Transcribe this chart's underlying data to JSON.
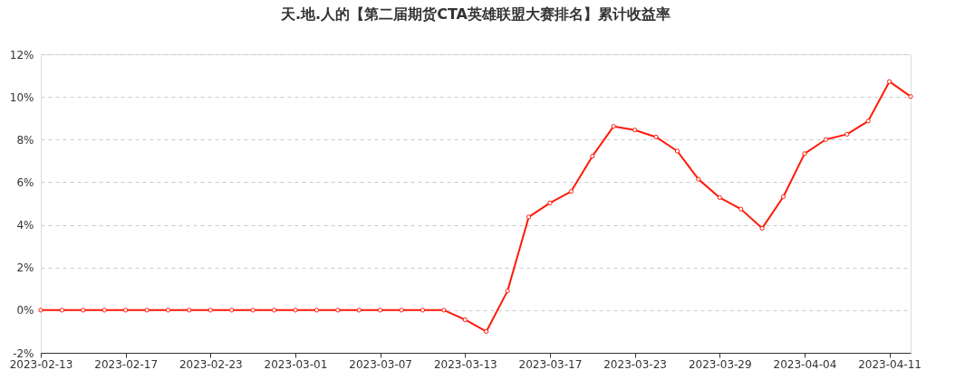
{
  "chart_data": {
    "type": "line",
    "title": "天.地.人的【第二届期货CTA英雄联盟大赛排名】累计收益率",
    "categories": [
      "2023-02-13",
      null,
      null,
      null,
      "2023-02-17",
      null,
      null,
      null,
      "2023-02-23",
      null,
      null,
      null,
      "2023-03-01",
      null,
      null,
      null,
      "2023-03-07",
      null,
      null,
      null,
      "2023-03-13",
      null,
      null,
      null,
      "2023-03-17",
      null,
      null,
      null,
      "2023-03-23",
      null,
      null,
      null,
      "2023-03-29",
      null,
      null,
      null,
      "2023-04-04",
      null,
      null,
      null,
      "2023-04-11",
      null
    ],
    "series": [
      {
        "color": "#ff1a0a",
        "values": [
          0,
          0,
          0,
          0,
          0,
          0,
          0,
          0,
          0,
          0,
          0,
          0,
          0,
          0,
          0,
          0,
          0,
          0,
          0,
          0,
          -0.45,
          -1.0,
          0.9,
          4.37,
          5.03,
          5.57,
          7.22,
          8.62,
          8.45,
          8.12,
          7.46,
          6.14,
          5.28,
          4.74,
          3.84,
          5.32,
          7.34,
          8.0,
          8.25,
          8.87,
          10.72,
          10.02
        ]
      }
    ],
    "ylim": [
      -2,
      12
    ],
    "yticks": [
      {
        "value": -2,
        "label": "-2%"
      },
      {
        "value": 0,
        "label": "0%"
      },
      {
        "value": 2,
        "label": "2%"
      },
      {
        "value": 4,
        "label": "4%"
      },
      {
        "value": 6,
        "label": "6%"
      },
      {
        "value": 8,
        "label": "8%"
      },
      {
        "value": 10,
        "label": "10%"
      },
      {
        "value": 12,
        "label": "12%"
      }
    ],
    "grid": "y",
    "marker": "circle",
    "line_style": "solid"
  }
}
